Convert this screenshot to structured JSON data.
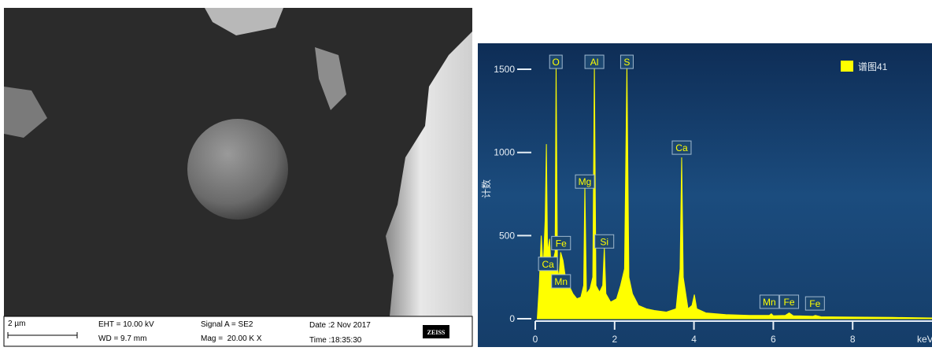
{
  "sem": {
    "scale_bar": "2 µm",
    "eht": "EHT = 10.00 kV",
    "wd": "WD = 9.7 mm",
    "signal": "Signal A = SE2",
    "mag": "Mag =  20.00 K X",
    "date": "Date :2 Nov 2017",
    "time": "Time :18:35:30",
    "logo": "ZEISS"
  },
  "chart_data": {
    "type": "area",
    "y_label": "计数",
    "x_label": "keV",
    "xlim": [
      0,
      10
    ],
    "ylim": [
      0,
      1650
    ],
    "xticks": [
      0,
      2,
      4,
      6,
      8
    ],
    "yticks": [
      0,
      500,
      1000,
      1500
    ],
    "legend": "top-right",
    "series": [
      {
        "name": "谱图41",
        "color": "#ffff00",
        "x": [
          0.05,
          0.1,
          0.15,
          0.2,
          0.25,
          0.28,
          0.31,
          0.36,
          0.4,
          0.45,
          0.5,
          0.525,
          0.56,
          0.6,
          0.64,
          0.7,
          0.76,
          0.85,
          0.95,
          1.05,
          1.15,
          1.22,
          1.25,
          1.29,
          1.38,
          1.45,
          1.49,
          1.53,
          1.62,
          1.7,
          1.74,
          1.78,
          1.9,
          2.05,
          2.15,
          2.25,
          2.31,
          2.36,
          2.45,
          2.6,
          2.8,
          3.0,
          3.3,
          3.55,
          3.65,
          3.69,
          3.73,
          3.85,
          3.95,
          4.01,
          4.07,
          4.3,
          4.8,
          5.4,
          5.9,
          5.95,
          6.0,
          6.3,
          6.4,
          6.5,
          7.0,
          7.06,
          7.2,
          8.0,
          9.0,
          10.0
        ],
        "values": [
          0,
          200,
          500,
          300,
          600,
          1050,
          400,
          480,
          300,
          350,
          400,
          1530,
          300,
          250,
          400,
          350,
          250,
          200,
          150,
          120,
          130,
          200,
          810,
          150,
          180,
          250,
          1530,
          200,
          160,
          200,
          430,
          150,
          100,
          120,
          200,
          300,
          1530,
          250,
          150,
          80,
          60,
          50,
          40,
          60,
          300,
          970,
          250,
          60,
          80,
          145,
          60,
          35,
          25,
          20,
          20,
          30,
          18,
          20,
          35,
          18,
          15,
          20,
          12,
          10,
          8,
          5
        ]
      }
    ],
    "annotations": [
      {
        "text": "O",
        "x": 0.52,
        "y": 1500
      },
      {
        "text": "Al",
        "x": 1.49,
        "y": 1500
      },
      {
        "text": "S",
        "x": 2.31,
        "y": 1500
      },
      {
        "text": "Ca",
        "x": 3.69,
        "y": 984
      },
      {
        "text": "Mg",
        "x": 1.25,
        "y": 780
      },
      {
        "text": "Si",
        "x": 1.74,
        "y": 420
      },
      {
        "text": "Fe",
        "x": 0.65,
        "y": 410
      },
      {
        "text": "Ca",
        "x": 0.32,
        "y": 285
      },
      {
        "text": "Mn",
        "x": 0.65,
        "y": 180
      },
      {
        "text": "Mn",
        "x": 5.9,
        "y": 57
      },
      {
        "text": "Fe",
        "x": 6.4,
        "y": 57
      },
      {
        "text": "Fe",
        "x": 7.05,
        "y": 47
      }
    ]
  }
}
